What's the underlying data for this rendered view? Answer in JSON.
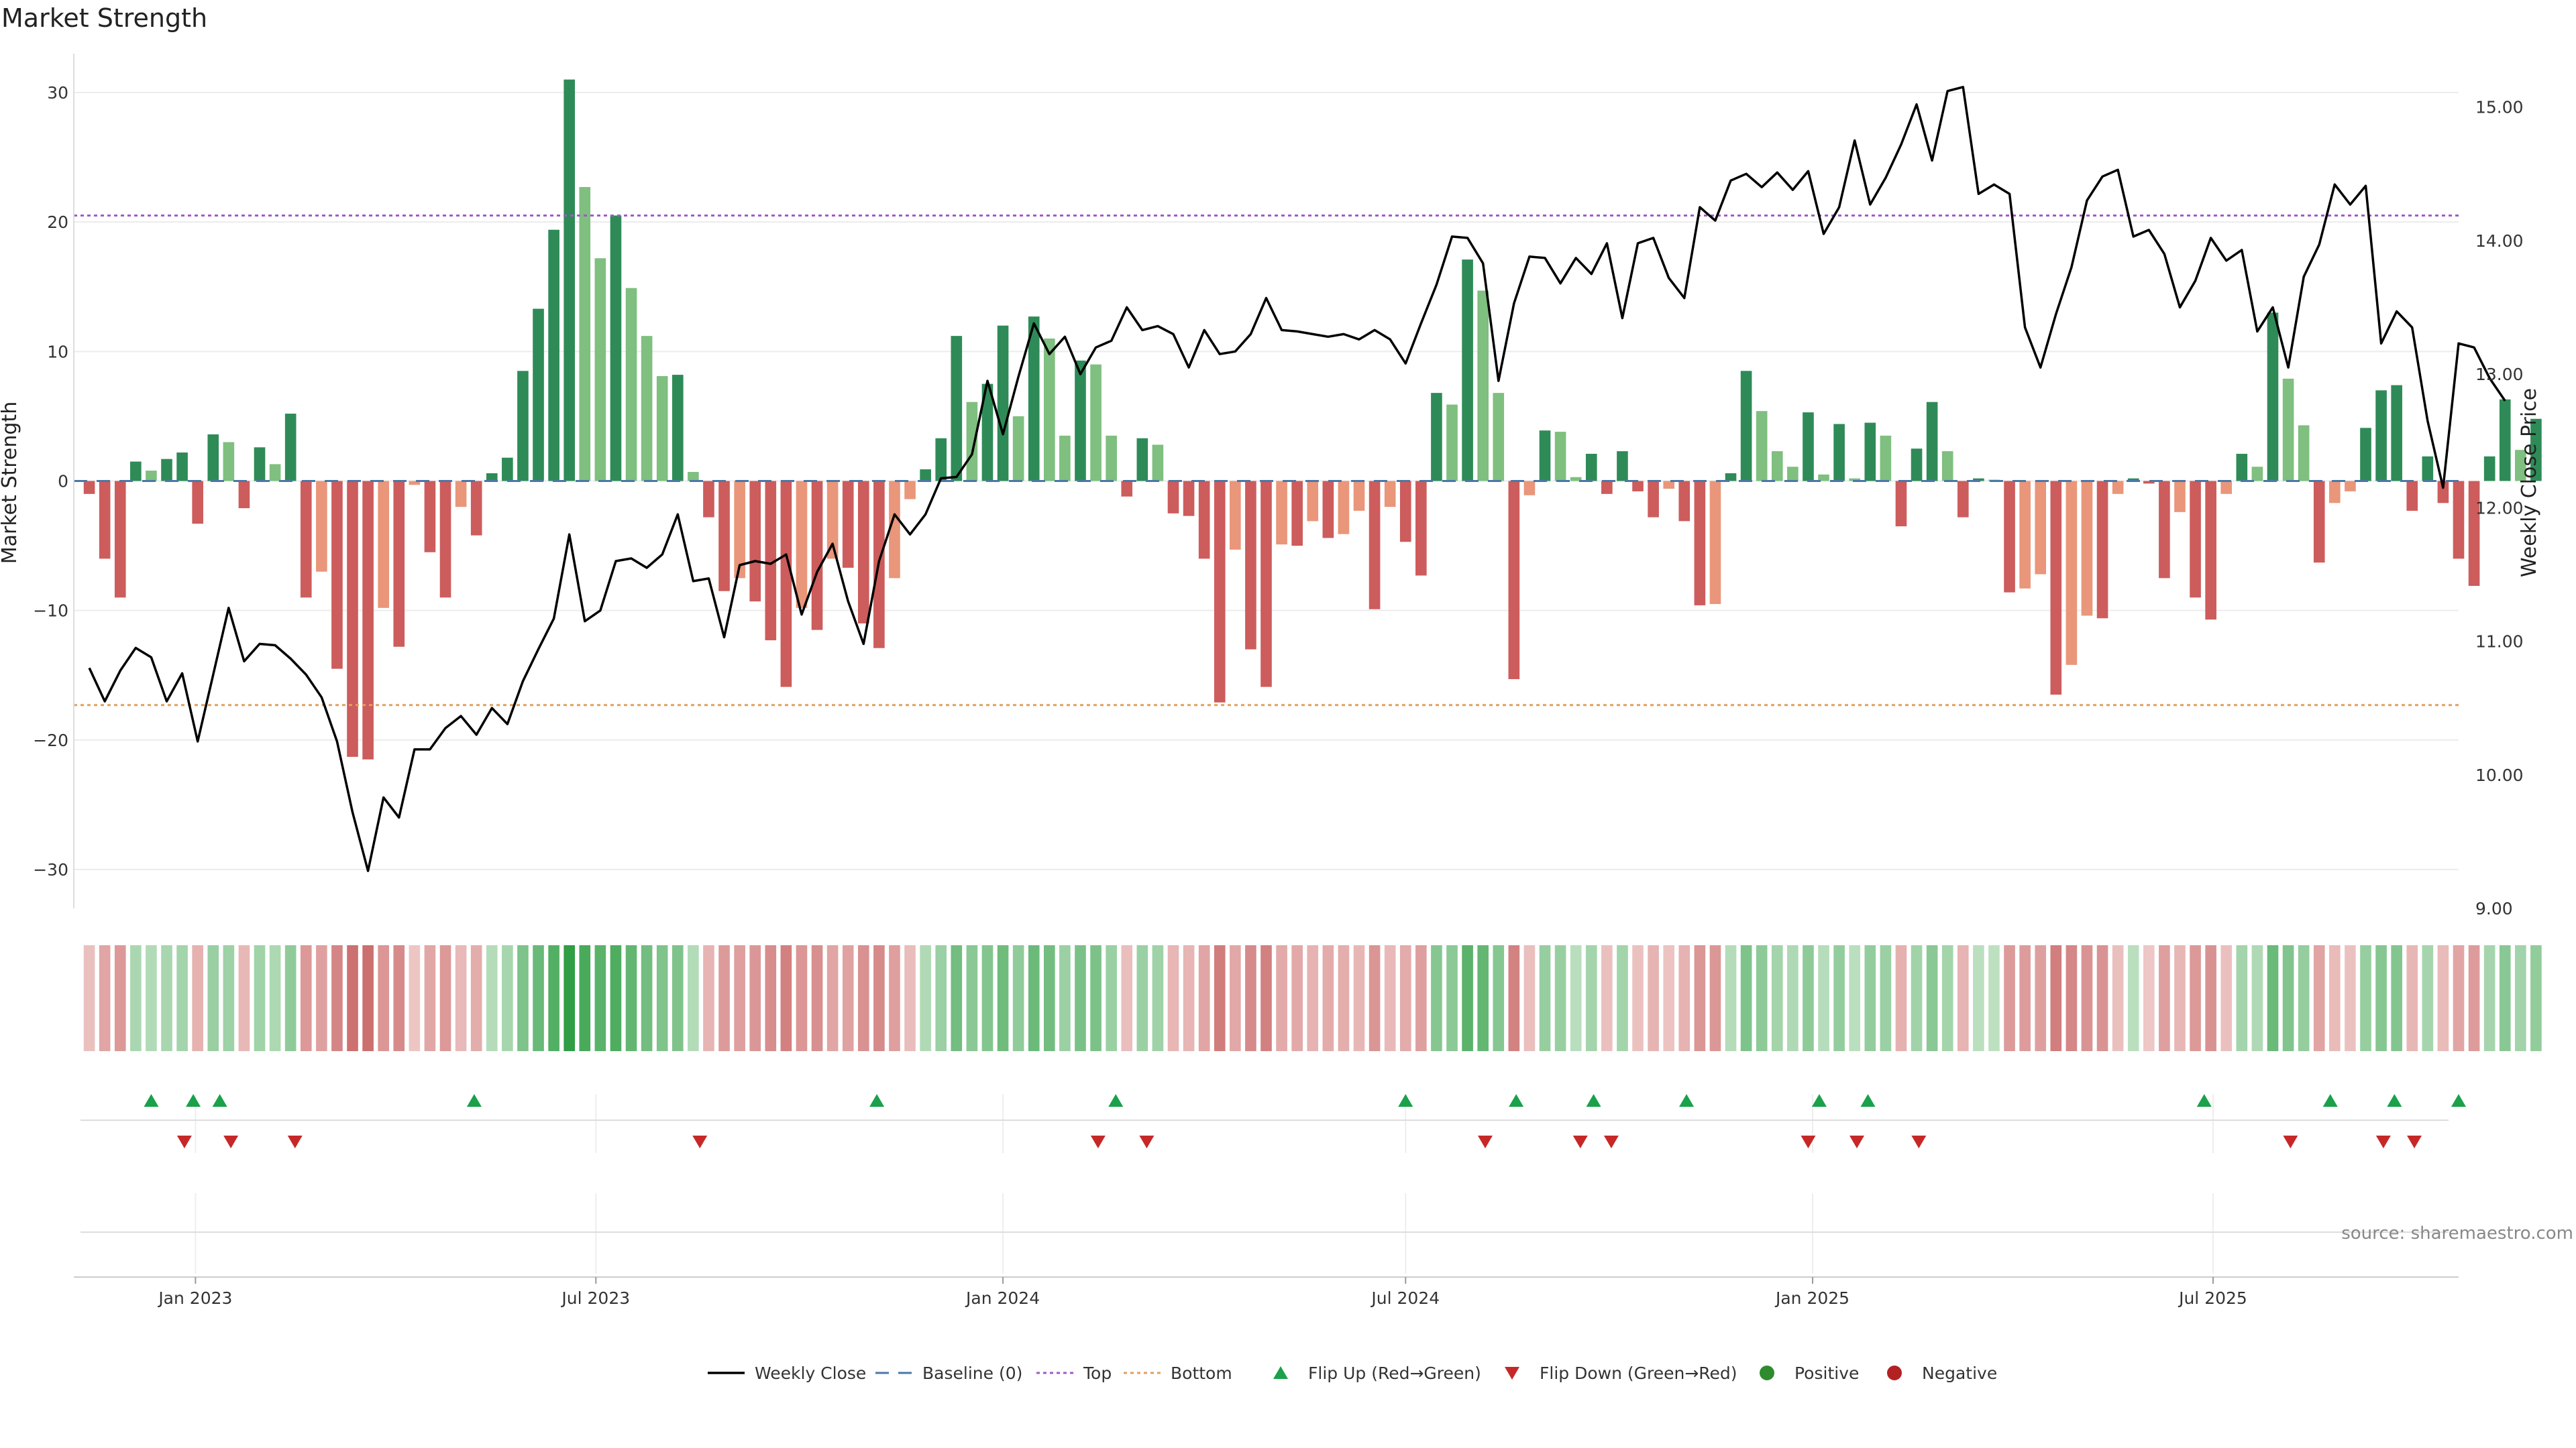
{
  "chart_data": {
    "type": "bar",
    "title": "Market Strength",
    "ylabel_left": "Market Strength",
    "ylabel_right": "Weekly Close Price",
    "source": "source: sharemaestro.com",
    "left_ylim": [
      -33,
      33
    ],
    "left_yticks": [
      "30",
      "20",
      "10",
      "0",
      "−10",
      "−20",
      "−30"
    ],
    "left_ytick_values": [
      30,
      20,
      10,
      0,
      -10,
      -20,
      -30
    ],
    "right_ylim": [
      9.0,
      15.4
    ],
    "right_yticks": [
      "15.00",
      "14.00",
      "13.00",
      "12.00",
      "11.00",
      "10.00",
      "9.00"
    ],
    "right_ytick_values": [
      15,
      14,
      13,
      12,
      11,
      10,
      9
    ],
    "x_start": "2022-11-07",
    "x_end": "2025-10-20",
    "xticks": [
      {
        "date": "2023-01-01",
        "label": "Jan 2023"
      },
      {
        "date": "2023-07-01",
        "label": "Jul 2023"
      },
      {
        "date": "2024-01-01",
        "label": "Jan 2024"
      },
      {
        "date": "2024-07-01",
        "label": "Jul 2024"
      },
      {
        "date": "2025-01-01",
        "label": "Jan 2025"
      },
      {
        "date": "2025-07-01",
        "label": "Jul 2025"
      }
    ],
    "weeks_start": "2022-11-14",
    "weeks_count": 157,
    "market_strength": [
      -1,
      -6,
      -9,
      1.5,
      0.8,
      1.7,
      2.2,
      -3.3,
      3.6,
      3,
      -2.1,
      2.6,
      1.3,
      5.2,
      -9,
      -7,
      -14.5,
      -21.3,
      -21.5,
      -9.8,
      -12.8,
      -0.3,
      -5.5,
      -9,
      -2,
      -4.2,
      0.6,
      1.8,
      8.5,
      13.3,
      19.4,
      31,
      22.7,
      17.2,
      20.5,
      14.9,
      11.2,
      8.1,
      8.2,
      0.7,
      -2.8,
      -8.5,
      -7.5,
      -9.3,
      -12.3,
      -15.9,
      -9.8,
      -11.5,
      -6,
      -6.7,
      -11,
      -12.9,
      -7.5,
      -1.4,
      0.9,
      3.3,
      11.2,
      6.1,
      7.5,
      12,
      5,
      12.7,
      11,
      3.5,
      9.3,
      9,
      3.5,
      -1.2,
      3.3,
      2.8,
      -2.5,
      -2.7,
      -6,
      -17.1,
      -5.3,
      -13,
      -15.9,
      -4.9,
      -5,
      -3.1,
      -4.4,
      -4.1,
      -2.3,
      -9.9,
      -2,
      -4.7,
      -7.3,
      6.8,
      5.9,
      17.1,
      14.7,
      6.8,
      -15.3,
      -1.1,
      3.9,
      3.8,
      0.3,
      2.1,
      -1,
      2.3,
      -0.8,
      -2.8,
      -0.6,
      -3.1,
      -9.6,
      -9.5,
      0.6,
      8.5,
      5.4,
      2.3,
      1.1,
      5.3,
      0.5,
      4.4,
      0.2,
      4.5,
      3.5,
      -3.5,
      2.5,
      6.1,
      2.3,
      -2.8,
      0.2,
      0.1,
      -8.6,
      -8.3,
      -7.2,
      -16.5,
      -14.2,
      -10.4,
      -10.6,
      -1,
      0.2,
      -0.2,
      -7.5,
      -2.4,
      -9,
      -10.7,
      -1,
      2.1,
      1.1,
      13,
      7.9,
      4.3,
      -6.3,
      -1.7,
      -0.8,
      4.1,
      7,
      7.4,
      -2.3,
      1.9,
      -1.7,
      -6,
      -8.1,
      1.9,
      6.3,
      2.4,
      4.8
    ],
    "weekly_close": [
      10.8,
      10.55,
      10.78,
      10.95,
      10.88,
      10.55,
      10.76,
      10.25,
      10.75,
      11.25,
      10.85,
      10.98,
      10.97,
      10.87,
      10.75,
      10.58,
      10.25,
      9.72,
      9.28,
      9.83,
      9.68,
      10.19,
      10.19,
      10.35,
      10.44,
      10.3,
      10.5,
      10.38,
      10.7,
      10.94,
      11.17,
      11.8,
      11.15,
      11.23,
      11.6,
      11.62,
      11.55,
      11.65,
      11.95,
      11.45,
      11.47,
      11.03,
      11.57,
      11.6,
      11.58,
      11.65,
      11.2,
      11.52,
      11.73,
      11.3,
      10.98,
      11.6,
      11.95,
      11.8,
      11.95,
      12.22,
      12.23,
      12.4,
      12.95,
      12.55,
      12.98,
      13.38,
      13.15,
      13.28,
      13,
      13.2,
      13.25,
      13.5,
      13.33,
      13.36,
      13.3,
      13.05,
      13.33,
      13.15,
      13.17,
      13.3,
      13.57,
      13.33,
      13.32,
      13.3,
      13.28,
      13.3,
      13.26,
      13.33,
      13.26,
      13.08,
      13.38,
      13.67,
      14.03,
      14.02,
      13.83,
      12.95,
      13.53,
      13.88,
      13.87,
      13.68,
      13.87,
      13.75,
      13.98,
      13.42,
      13.98,
      14.02,
      13.72,
      13.57,
      14.25,
      14.15,
      14.45,
      14.5,
      14.4,
      14.51,
      14.38,
      14.52,
      14.05,
      14.25,
      14.75,
      14.27,
      14.47,
      14.72,
      15.02,
      14.6,
      15.12,
      15.15,
      14.35,
      14.42,
      14.35,
      13.35,
      13.05,
      13.45,
      13.8,
      14.3,
      14.48,
      14.53,
      14.03,
      14.08,
      13.9,
      13.5,
      13.7,
      14.02,
      13.85,
      13.93,
      13.32,
      13.5,
      13.05,
      13.73,
      13.97,
      14.42,
      14.27,
      14.41,
      13.23,
      13.47,
      13.35,
      12.65,
      12.15,
      13.23,
      13.2,
      12.97,
      12.8
    ],
    "top_line": 20.5,
    "bottom_line": -17.3,
    "baseline": 0,
    "flip_up_dates": [
      "2022-12-12",
      "2022-12-31",
      "2023-01-12",
      "2023-05-07",
      "2023-11-05",
      "2024-02-21",
      "2024-07-01",
      "2024-08-20",
      "2024-09-24",
      "2024-11-05",
      "2025-01-04",
      "2025-01-26",
      "2025-06-27",
      "2025-08-23",
      "2025-09-21",
      "2025-10-20"
    ],
    "flip_down_dates": [
      "2022-12-27",
      "2023-01-17",
      "2023-02-15",
      "2023-08-17",
      "2024-02-13",
      "2024-03-06",
      "2024-08-06",
      "2024-09-18",
      "2024-10-02",
      "2024-12-30",
      "2025-01-21",
      "2025-02-18",
      "2025-08-05",
      "2025-09-16",
      "2025-09-30"
    ],
    "colors": {
      "strong_green": "#2e8b57",
      "light_green": "#7fbf7f",
      "strong_red": "#cd5c5c",
      "light_red": "#e9967a",
      "price_line": "#000000",
      "baseline": "#4a77a8",
      "top": "#a05cc4",
      "bottom": "#e0a060",
      "flip_up": "#1aa14a",
      "flip_down": "#c62828",
      "positive": "#2e8b2e",
      "negative": "#b22222"
    },
    "legend": {
      "placement": "bottom-center",
      "items": [
        {
          "key": "weekly_close",
          "label": "Weekly Close"
        },
        {
          "key": "baseline",
          "label": "Baseline (0)"
        },
        {
          "key": "top",
          "label": "Top"
        },
        {
          "key": "bottom",
          "label": "Bottom"
        },
        {
          "key": "flip_up",
          "label": "Flip Up (Red→Green)"
        },
        {
          "key": "flip_down",
          "label": "Flip Down (Green→Red)"
        },
        {
          "key": "positive",
          "label": "Positive"
        },
        {
          "key": "negative",
          "label": "Negative"
        }
      ]
    },
    "grid": true
  }
}
